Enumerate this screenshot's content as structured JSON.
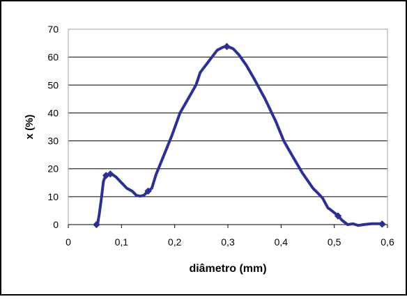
{
  "chart_data": {
    "type": "line",
    "title": "",
    "xlabel": "diâmetro (mm)",
    "ylabel": "x (%)",
    "xlim": [
      0,
      0.6
    ],
    "ylim": [
      0,
      70
    ],
    "xticks": [
      {
        "value": 0,
        "label": "0"
      },
      {
        "value": 0.1,
        "label": "0,1"
      },
      {
        "value": 0.2,
        "label": "0,2"
      },
      {
        "value": 0.3,
        "label": "0,3"
      },
      {
        "value": 0.4,
        "label": "0,4"
      },
      {
        "value": 0.5,
        "label": "0,5"
      },
      {
        "value": 0.6,
        "label": "0,6"
      }
    ],
    "yticks": [
      {
        "value": 0,
        "label": "0"
      },
      {
        "value": 10,
        "label": "10"
      },
      {
        "value": 20,
        "label": "20"
      },
      {
        "value": 30,
        "label": "30"
      },
      {
        "value": 40,
        "label": "40"
      },
      {
        "value": 50,
        "label": "50"
      },
      {
        "value": 60,
        "label": "60"
      },
      {
        "value": 70,
        "label": "70"
      }
    ],
    "grid": "horizontal",
    "legend": "none",
    "colors": {
      "series": "#2b2f9a",
      "grid": "#000000",
      "plot_border": "#a0a0a0",
      "frame": "#000000"
    },
    "series": [
      {
        "x": [
          0.053,
          0.055,
          0.058,
          0.062,
          0.066,
          0.07,
          0.075,
          0.081,
          0.09,
          0.1,
          0.11,
          0.12,
          0.128,
          0.135,
          0.142,
          0.15,
          0.157,
          0.165,
          0.18,
          0.195,
          0.21,
          0.225,
          0.24,
          0.248,
          0.26,
          0.27,
          0.28,
          0.29,
          0.295,
          0.3,
          0.31,
          0.32,
          0.335,
          0.35,
          0.37,
          0.39,
          0.405,
          0.42,
          0.44,
          0.46,
          0.468,
          0.478,
          0.488,
          0.495,
          0.505,
          0.515,
          0.525,
          0.535,
          0.545,
          0.555,
          0.57,
          0.588,
          0.593
        ],
        "y": [
          0.0,
          0.2,
          3.5,
          9.0,
          15.5,
          17.5,
          18.0,
          18.2,
          17.0,
          15.0,
          13.0,
          12.0,
          10.5,
          10.2,
          10.5,
          12.0,
          13.0,
          18.0,
          25.0,
          32.0,
          40.0,
          45.0,
          50.0,
          54.5,
          57.5,
          60.0,
          62.5,
          63.5,
          63.8,
          63.8,
          63.0,
          61.0,
          57.0,
          52.0,
          45.0,
          37.0,
          30.0,
          25.0,
          18.5,
          13.0,
          11.5,
          9.5,
          6.0,
          5.0,
          3.5,
          1.5,
          0.0,
          0.3,
          -0.3,
          0.0,
          0.3,
          0.3,
          0.0
        ]
      }
    ],
    "marker_x": [
      0.053,
      0.071,
      0.079,
      0.15,
      0.298,
      0.507,
      0.59
    ]
  }
}
